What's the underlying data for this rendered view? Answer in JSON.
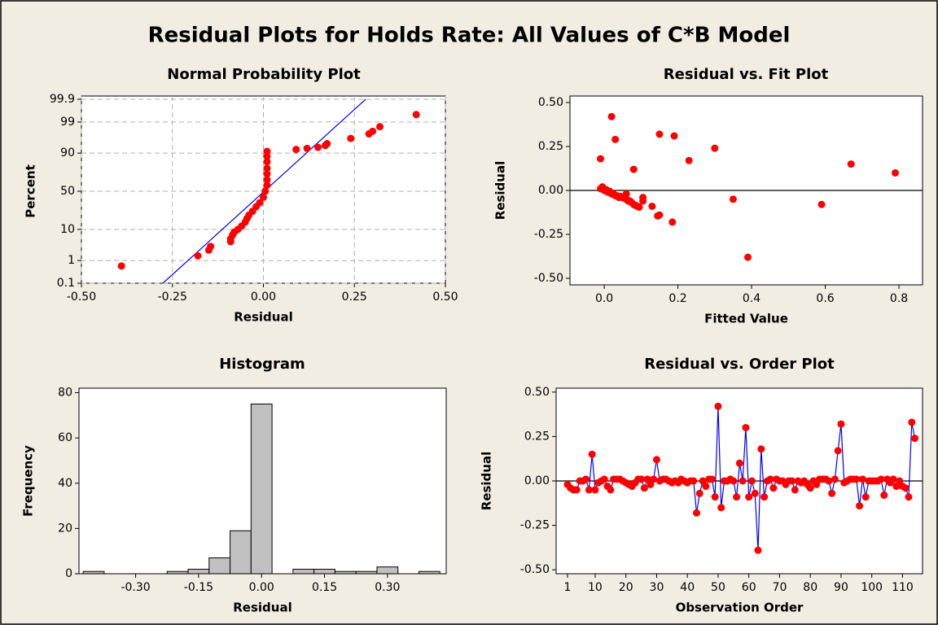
{
  "title": "Residual Plots for Holds Rate: All Values of C*B Model",
  "chart_data": [
    {
      "type": "probability",
      "title": "Normal Probability Plot",
      "x_label": "Residual",
      "y_label": "Percent",
      "xlim": [
        -0.5,
        0.5
      ],
      "xticks": [
        {
          "value": -0.5,
          "label": "-0.50"
        },
        {
          "value": -0.25,
          "label": "-0.25"
        },
        {
          "value": 0,
          "label": "0.00"
        },
        {
          "value": 0.25,
          "label": "0.25"
        },
        {
          "value": 0.5,
          "label": "0.50"
        }
      ],
      "ylim": [
        0.1,
        99.9
      ],
      "yscale": "probability",
      "yticks": [
        0.1,
        1,
        10,
        50,
        90,
        99,
        99.9
      ],
      "grid": true,
      "points": {
        "color": "#ff0000",
        "x": [
          -0.39,
          -0.18,
          -0.15,
          -0.145,
          -0.09,
          -0.09,
          -0.085,
          -0.08,
          -0.07,
          -0.06,
          -0.05,
          -0.045,
          -0.04,
          -0.03,
          -0.02,
          -0.01,
          0,
          0.005,
          0.01,
          0.01,
          0.01,
          0.01,
          0.01,
          0.01,
          0.01,
          0.09,
          0.12,
          0.15,
          0.17,
          0.175,
          0.24,
          0.29,
          0.3,
          0.32,
          0.42
        ],
        "values": [
          0.6,
          1.5,
          2.4,
          3.2,
          4.5,
          5.5,
          7,
          8.5,
          10,
          12,
          15,
          18,
          21,
          25,
          30,
          35,
          42,
          50,
          58,
          65,
          72,
          78,
          84,
          88,
          91,
          92,
          92.5,
          93,
          93.8,
          94.5,
          96.2,
          97.3,
          97.8,
          98.5,
          99.5
        ]
      },
      "fit_line": {
        "color": "#0000ff",
        "x": [
          -0.276,
          0.281
        ],
        "values": [
          0.1,
          99.9
        ]
      }
    },
    {
      "type": "scatter",
      "title": "Residual vs. Fit Plot",
      "x_label": "Fitted Value",
      "y_label": "Residual",
      "xlim": [
        -0.093,
        0.864
      ],
      "xticks": [
        {
          "value": 0,
          "label": "0.0"
        },
        0.2,
        0.4,
        0.6,
        0.8
      ],
      "ylim": [
        -0.537,
        0.537
      ],
      "yticks": [
        {
          "value": -0.5,
          "label": "-0.50"
        },
        {
          "value": -0.25,
          "label": "-0.25"
        },
        {
          "value": 0,
          "label": "0.00"
        },
        {
          "value": 0.25,
          "label": "0.25"
        },
        {
          "value": 0.5,
          "label": "0.50"
        }
      ],
      "hline": 0,
      "color": "#ff0000",
      "x": [
        -0.01,
        0.02,
        0.03,
        0.08,
        0.15,
        0.19,
        0.23,
        0.3,
        0.35,
        0.39,
        0.59,
        0.67,
        0.79,
        0.15,
        0.185,
        0.13,
        0.105,
        0.105,
        0.09,
        0.08,
        0.07,
        0.06,
        0.06,
        0.05,
        0.04,
        0.03,
        0.02,
        0.01,
        0,
        -0.01,
        -0.005,
        0.005,
        0.015,
        0.025,
        0.035,
        0.045,
        0.055,
        0.065,
        0.075,
        0.085,
        0.095,
        0.145
      ],
      "values": [
        0.18,
        0.42,
        0.29,
        0.12,
        0.32,
        0.31,
        0.17,
        0.24,
        -0.05,
        -0.38,
        -0.08,
        0.15,
        0.1,
        -0.14,
        -0.18,
        -0.09,
        -0.04,
        -0.06,
        -0.09,
        -0.08,
        -0.06,
        -0.02,
        -0.05,
        -0.04,
        -0.04,
        -0.03,
        -0.02,
        -0.01,
        0,
        0.01,
        0.02,
        0.005,
        -0.005,
        -0.02,
        -0.03,
        -0.035,
        -0.045,
        -0.06,
        -0.07,
        -0.085,
        -0.095,
        -0.145
      ]
    },
    {
      "type": "histogram",
      "title": "Histogram",
      "x_label": "Residual",
      "y_label": "Frequency",
      "xlim": [
        -0.435,
        0.44
      ],
      "xticks": [
        {
          "value": -0.3,
          "label": "-0.30"
        },
        {
          "value": -0.15,
          "label": "-0.15"
        },
        {
          "value": 0,
          "label": "0.00"
        },
        {
          "value": 0.15,
          "label": "0.15"
        },
        {
          "value": 0.3,
          "label": "0.30"
        }
      ],
      "ylim": [
        0,
        82
      ],
      "yticks": [
        0,
        20,
        40,
        60,
        80
      ],
      "color": "#c0c0c0",
      "bins": [
        -0.425,
        -0.375,
        -0.325,
        -0.275,
        -0.225,
        -0.175,
        -0.125,
        -0.075,
        -0.025,
        0.025,
        0.075,
        0.125,
        0.175,
        0.225,
        0.275,
        0.325,
        0.375,
        0.425
      ],
      "values": [
        1,
        0,
        0,
        0,
        1,
        2,
        7,
        19,
        75,
        0,
        2,
        2,
        1,
        1,
        3,
        0,
        1
      ]
    },
    {
      "type": "line",
      "title": "Residual vs. Order Plot",
      "x_label": "Observation Order",
      "y_label": "Residual",
      "xlim": [
        -2.7,
        116.5
      ],
      "xticks": [
        1,
        10,
        20,
        30,
        40,
        50,
        60,
        70,
        80,
        90,
        100,
        110
      ],
      "ylim": [
        -0.522,
        0.522
      ],
      "yticks": [
        {
          "value": -0.5,
          "label": "-0.50"
        },
        {
          "value": -0.25,
          "label": "-0.25"
        },
        {
          "value": 0,
          "label": "0.00"
        },
        {
          "value": 0.25,
          "label": "0.25"
        },
        {
          "value": 0.5,
          "label": "0.50"
        }
      ],
      "hline": 0,
      "color": "#ff0000",
      "line_color": "#0000ff",
      "x": [
        1,
        2,
        3,
        4,
        5,
        6,
        7,
        8,
        9,
        10,
        11,
        12,
        13,
        14,
        15,
        16,
        17,
        18,
        19,
        20,
        21,
        22,
        23,
        24,
        25,
        26,
        27,
        28,
        29,
        30,
        31,
        32,
        33,
        34,
        35,
        36,
        37,
        38,
        39,
        40,
        41,
        42,
        43,
        44,
        45,
        46,
        47,
        48,
        49,
        50,
        51,
        52,
        53,
        54,
        55,
        56,
        57,
        58,
        59,
        60,
        61,
        62,
        63,
        64,
        65,
        66,
        67,
        68,
        69,
        70,
        71,
        72,
        73,
        74,
        75,
        76,
        77,
        78,
        79,
        80,
        81,
        82,
        83,
        84,
        85,
        86,
        87,
        88,
        89,
        90,
        91,
        92,
        93,
        94,
        95,
        96,
        97,
        98,
        99,
        100,
        101,
        102,
        103,
        104,
        105,
        106,
        107,
        108,
        109,
        110,
        111,
        112,
        113,
        114
      ],
      "values": [
        -0.02,
        -0.04,
        -0.05,
        -0.05,
        0,
        0,
        0.01,
        -0.05,
        0.15,
        -0.05,
        -0.01,
        0,
        0.01,
        -0.03,
        -0.05,
        0.01,
        0.01,
        0.01,
        0,
        -0.01,
        -0.02,
        -0.03,
        -0.01,
        0.01,
        0.01,
        -0.04,
        0.01,
        -0.02,
        0.01,
        0.12,
        0,
        0.01,
        0.01,
        0,
        -0.01,
        0,
        -0.01,
        0.01,
        0,
        -0.01,
        0,
        0,
        -0.18,
        -0.07,
        0,
        -0.03,
        0.01,
        0.01,
        -0.09,
        0.42,
        -0.15,
        0,
        0,
        0.01,
        0,
        -0.09,
        0.1,
        0,
        0.3,
        -0.09,
        0,
        -0.07,
        -0.39,
        0.18,
        -0.09,
        0,
        0.01,
        -0.04,
        0.01,
        0,
        0,
        -0.02,
        0,
        0,
        -0.05,
        0,
        -0.01,
        0,
        -0.02,
        -0.04,
        0,
        -0.02,
        0.01,
        0.01,
        0.01,
        0,
        -0.07,
        0.01,
        0.17,
        0.32,
        -0.01,
        0,
        0.01,
        0.01,
        0.01,
        -0.14,
        0.01,
        -0.09,
        0,
        0,
        0,
        0,
        0.01,
        -0.08,
        0.01,
        -0.01,
        0.01,
        -0.03,
        0,
        -0.03,
        -0.04,
        -0.09,
        0.33,
        0.24
      ]
    }
  ]
}
